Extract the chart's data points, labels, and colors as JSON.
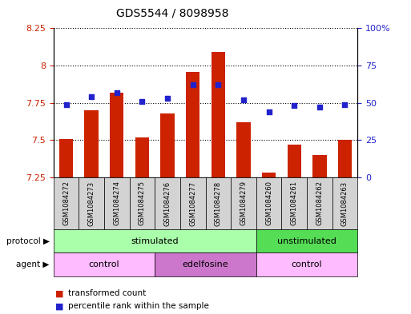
{
  "title": "GDS5544 / 8098958",
  "samples": [
    "GSM1084272",
    "GSM1084273",
    "GSM1084274",
    "GSM1084275",
    "GSM1084276",
    "GSM1084277",
    "GSM1084278",
    "GSM1084279",
    "GSM1084260",
    "GSM1084261",
    "GSM1084262",
    "GSM1084263"
  ],
  "transformed_count": [
    7.51,
    7.7,
    7.82,
    7.52,
    7.68,
    7.96,
    8.09,
    7.62,
    7.28,
    7.47,
    7.4,
    7.5
  ],
  "percentile_rank": [
    49,
    54,
    57,
    51,
    53,
    62,
    62,
    52,
    44,
    48,
    47,
    49
  ],
  "ylim_left": [
    7.25,
    8.25
  ],
  "ylim_right": [
    0,
    100
  ],
  "yticks_left": [
    7.25,
    7.5,
    7.75,
    8.0,
    8.25
  ],
  "ytick_labels_left": [
    "7.25",
    "7.5",
    "7.75",
    "8",
    "8.25"
  ],
  "yticks_right": [
    0,
    25,
    50,
    75,
    100
  ],
  "ytick_labels_right": [
    "0",
    "25",
    "50",
    "75",
    "100%"
  ],
  "bar_color": "#cc2200",
  "dot_color": "#2222cc",
  "bar_bottom": 7.25,
  "sample_box_color": "#d3d3d3",
  "protocol_groups": [
    {
      "label": "stimulated",
      "start": 0,
      "end": 7,
      "color": "#aaffaa"
    },
    {
      "label": "unstimulated",
      "start": 8,
      "end": 11,
      "color": "#55dd55"
    }
  ],
  "agent_groups": [
    {
      "label": "control",
      "start": 0,
      "end": 3,
      "color": "#ffbbff"
    },
    {
      "label": "edelfosine",
      "start": 4,
      "end": 7,
      "color": "#cc77cc"
    },
    {
      "label": "control",
      "start": 8,
      "end": 11,
      "color": "#ffbbff"
    }
  ],
  "legend_items": [
    {
      "label": "transformed count",
      "color": "#cc2200"
    },
    {
      "label": "percentile rank within the sample",
      "color": "#2222cc"
    }
  ],
  "background_color": "#ffffff",
  "tick_color_left": "#cc2200",
  "tick_color_right": "#2222cc"
}
